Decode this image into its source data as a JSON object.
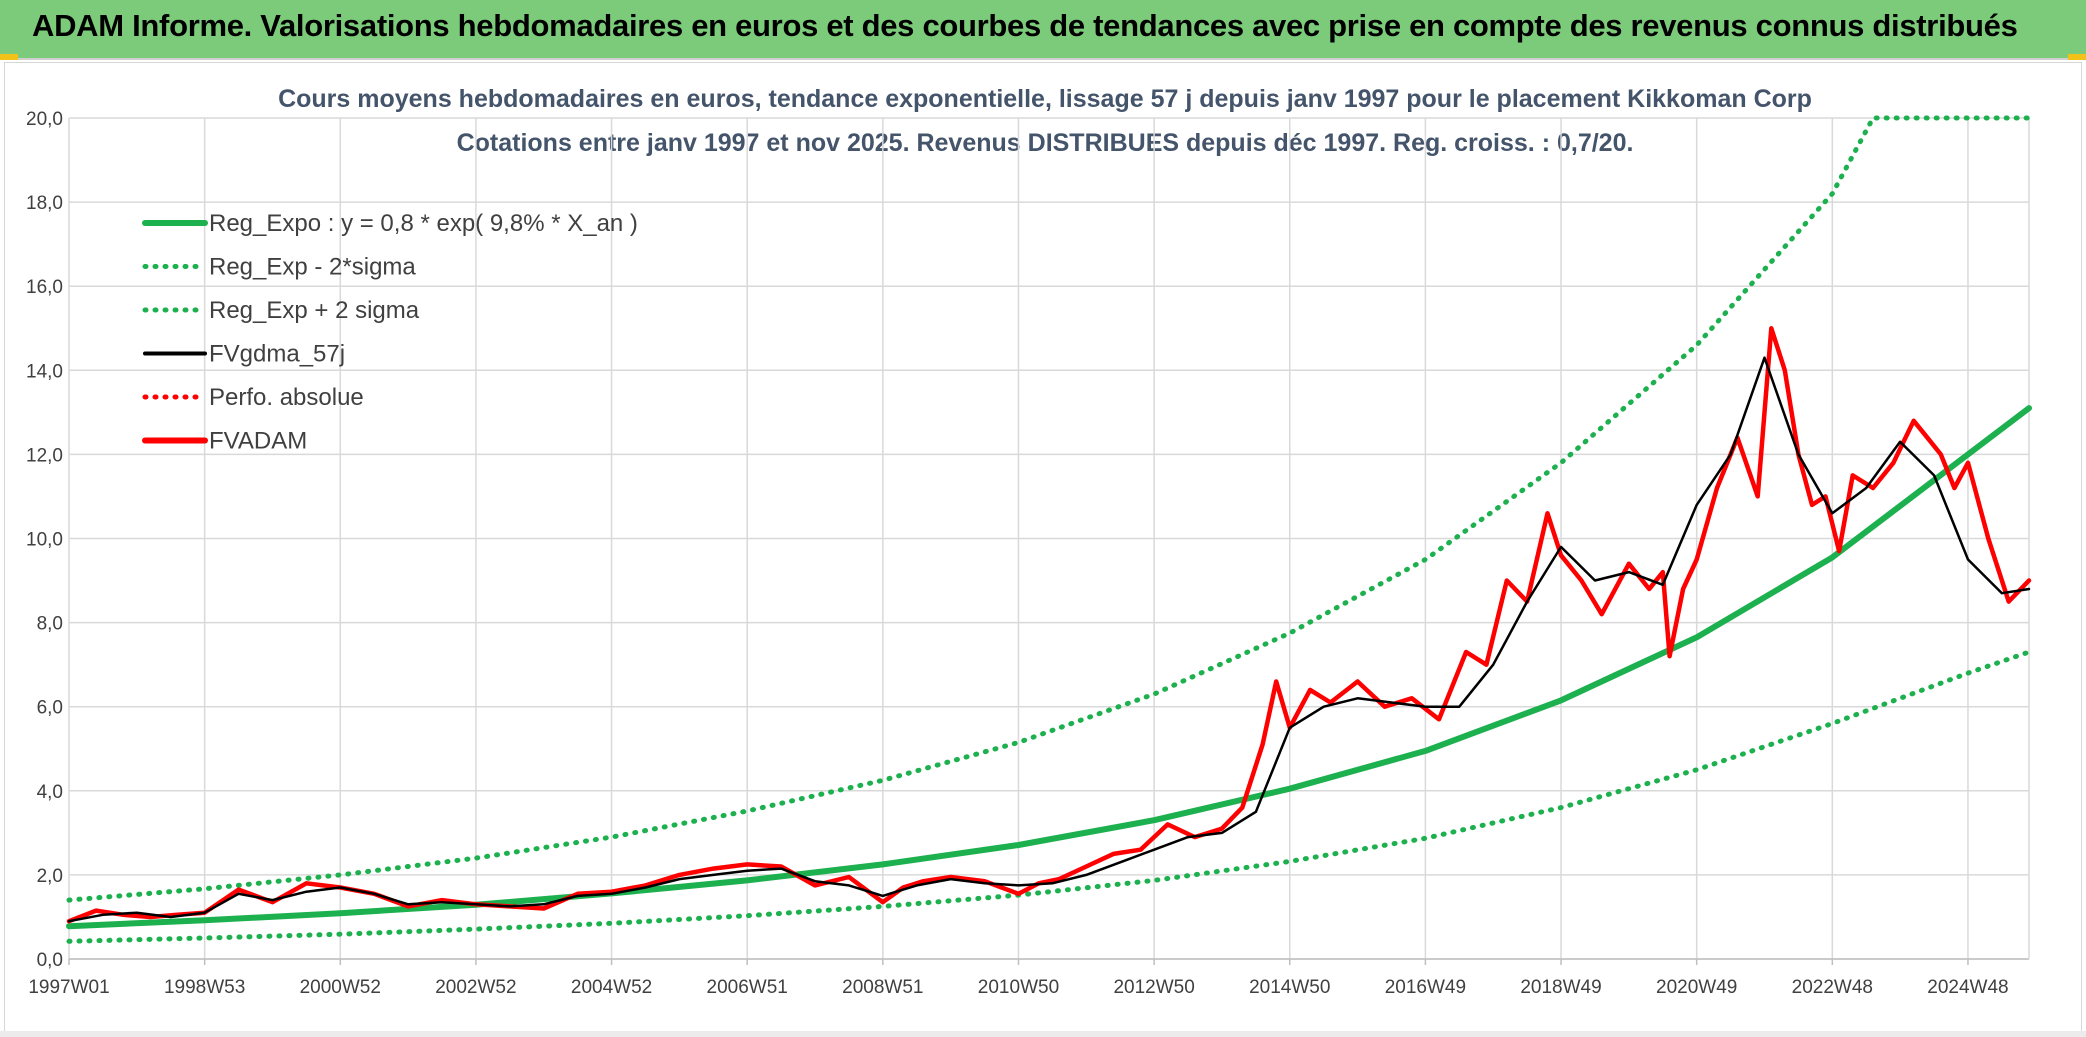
{
  "header": {
    "title": "ADAM Informe. Valorisations hebdomadaires en euros et des courbes de tendances avec prise en compte des revenus connus distribués"
  },
  "colors": {
    "header_bg": "#7ccb7a",
    "reg_green": "#1db04f",
    "fv_red": "#ff0000",
    "gdma_black": "#000000",
    "grid": "#d9d9d9",
    "text": "#44546a"
  },
  "chart_data": {
    "type": "line",
    "title": "Cours moyens hebdomadaires en euros, tendance exponentielle, lissage 57 j depuis janv 1997 pour le placement Kikkoman Corp",
    "subtitle": "Cotations entre janv 1997 et nov 2025. Revenus DISTRIBUES depuis déc 1997. Reg. croiss. : 0,7/20.",
    "xlabel": "",
    "ylabel": "",
    "ylim": [
      0,
      20
    ],
    "xlim": [
      1997.0,
      2025.9
    ],
    "y_ticks": [
      "0,0",
      "2,0",
      "4,0",
      "6,0",
      "8,0",
      "10,0",
      "12,0",
      "14,0",
      "16,0",
      "18,0",
      "20,0"
    ],
    "x_ticks": [
      {
        "x": 1997.0,
        "label": "1997W01"
      },
      {
        "x": 1999.0,
        "label": "1998W53"
      },
      {
        "x": 2001.0,
        "label": "2000W52"
      },
      {
        "x": 2003.0,
        "label": "2002W52"
      },
      {
        "x": 2005.0,
        "label": "2004W52"
      },
      {
        "x": 2007.0,
        "label": "2006W51"
      },
      {
        "x": 2009.0,
        "label": "2008W51"
      },
      {
        "x": 2011.0,
        "label": "2010W50"
      },
      {
        "x": 2013.0,
        "label": "2012W50"
      },
      {
        "x": 2015.0,
        "label": "2014W50"
      },
      {
        "x": 2017.0,
        "label": "2016W49"
      },
      {
        "x": 2019.0,
        "label": "2018W49"
      },
      {
        "x": 2021.0,
        "label": "2020W49"
      },
      {
        "x": 2023.0,
        "label": "2022W48"
      },
      {
        "x": 2025.0,
        "label": "2024W48"
      }
    ],
    "grid": true,
    "legend_position": "top-left",
    "legend": [
      {
        "label": "Reg_Expo : y = 0,8 * exp( 9,8% *  X_an )",
        "color": "#1db04f",
        "style": "solid-thick"
      },
      {
        "label": "Reg_Exp - 2*sigma",
        "color": "#1db04f",
        "style": "dotted"
      },
      {
        "label": "Reg_Exp + 2 sigma",
        "color": "#1db04f",
        "style": "dotted"
      },
      {
        "label": "FVgdma_57j",
        "color": "#000000",
        "style": "solid-thin"
      },
      {
        "label": "Perfo. absolue",
        "color": "#ff0000",
        "style": "dotted"
      },
      {
        "label": "FVADAM",
        "color": "#ff0000",
        "style": "solid-thick"
      }
    ],
    "series": [
      {
        "name": "Reg_Expo",
        "x": [
          1997,
          1999,
          2001,
          2003,
          2005,
          2007,
          2009,
          2011,
          2013,
          2015,
          2017,
          2019,
          2021,
          2023,
          2025,
          2025.9
        ],
        "values": [
          0.78,
          0.92,
          1.09,
          1.29,
          1.56,
          1.87,
          2.25,
          2.71,
          3.3,
          4.05,
          4.95,
          6.15,
          7.65,
          9.55,
          12.0,
          13.1
        ]
      },
      {
        "name": "Reg_Exp - 2*sigma",
        "x": [
          1997,
          1999,
          2001,
          2003,
          2005,
          2007,
          2009,
          2011,
          2013,
          2015,
          2017,
          2019,
          2021,
          2023,
          2025,
          2025.9
        ],
        "values": [
          0.42,
          0.5,
          0.59,
          0.71,
          0.85,
          1.03,
          1.25,
          1.52,
          1.87,
          2.32,
          2.87,
          3.6,
          4.5,
          5.6,
          6.8,
          7.3
        ]
      },
      {
        "name": "Reg_Exp + 2 sigma",
        "x": [
          1997,
          1999,
          2001,
          2003,
          2005,
          2007,
          2009,
          2011,
          2013,
          2015,
          2017,
          2019,
          2021,
          2023,
          2023.6,
          2025.9
        ],
        "values": [
          1.4,
          1.67,
          2.0,
          2.4,
          2.9,
          3.52,
          4.25,
          5.15,
          6.3,
          7.75,
          9.5,
          11.8,
          14.6,
          18.2,
          20.0,
          20.0
        ]
      },
      {
        "name": "FVgdma_57j",
        "x": [
          1997.0,
          1997.5,
          1998.0,
          1998.5,
          1999.0,
          1999.5,
          2000.0,
          2000.5,
          2001.0,
          2001.5,
          2002.0,
          2002.5,
          2003.0,
          2003.5,
          2004.0,
          2004.5,
          2005.0,
          2005.5,
          2006.0,
          2006.5,
          2007.0,
          2007.5,
          2008.0,
          2008.5,
          2009.0,
          2009.5,
          2010.0,
          2010.5,
          2011.0,
          2011.5,
          2012.0,
          2012.5,
          2013.0,
          2013.5,
          2014.0,
          2014.5,
          2015.0,
          2015.5,
          2016.0,
          2016.5,
          2017.0,
          2017.5,
          2018.0,
          2018.5,
          2019.0,
          2019.5,
          2020.0,
          2020.5,
          2021.0,
          2021.5,
          2022.0,
          2022.5,
          2023.0,
          2023.5,
          2024.0,
          2024.5,
          2025.0,
          2025.5,
          2025.9
        ],
        "values": [
          0.9,
          1.05,
          1.1,
          1.0,
          1.1,
          1.55,
          1.4,
          1.6,
          1.7,
          1.55,
          1.3,
          1.35,
          1.3,
          1.25,
          1.3,
          1.5,
          1.55,
          1.7,
          1.9,
          2.0,
          2.1,
          2.15,
          1.85,
          1.75,
          1.5,
          1.75,
          1.9,
          1.8,
          1.75,
          1.8,
          2.0,
          2.3,
          2.6,
          2.9,
          3.0,
          3.5,
          5.5,
          6.0,
          6.2,
          6.1,
          6.0,
          6.0,
          7.0,
          8.5,
          9.8,
          9.0,
          9.2,
          8.9,
          10.8,
          12.0,
          14.3,
          12.0,
          10.6,
          11.2,
          12.3,
          11.5,
          9.5,
          8.7,
          8.8
        ]
      },
      {
        "name": "FVADAM",
        "x": [
          1997.0,
          1997.4,
          1997.8,
          1998.2,
          1998.6,
          1999.0,
          1999.5,
          2000.0,
          2000.5,
          2001.0,
          2001.5,
          2002.0,
          2002.5,
          2003.0,
          2003.5,
          2004.0,
          2004.5,
          2005.0,
          2005.5,
          2006.0,
          2006.5,
          2007.0,
          2007.5,
          2008.0,
          2008.5,
          2009.0,
          2009.3,
          2009.6,
          2010.0,
          2010.5,
          2011.0,
          2011.3,
          2011.6,
          2012.0,
          2012.4,
          2012.8,
          2013.2,
          2013.6,
          2014.0,
          2014.3,
          2014.6,
          2014.8,
          2015.0,
          2015.3,
          2015.6,
          2016.0,
          2016.4,
          2016.8,
          2017.2,
          2017.6,
          2017.9,
          2018.2,
          2018.5,
          2018.8,
          2019.0,
          2019.3,
          2019.6,
          2020.0,
          2020.3,
          2020.5,
          2020.6,
          2020.8,
          2021.0,
          2021.3,
          2021.6,
          2021.9,
          2022.1,
          2022.3,
          2022.5,
          2022.7,
          2022.9,
          2023.1,
          2023.3,
          2023.6,
          2023.9,
          2024.2,
          2024.4,
          2024.6,
          2024.8,
          2025.0,
          2025.3,
          2025.6,
          2025.9
        ],
        "values": [
          0.9,
          1.15,
          1.05,
          1.0,
          1.05,
          1.1,
          1.65,
          1.35,
          1.8,
          1.7,
          1.55,
          1.25,
          1.4,
          1.3,
          1.25,
          1.2,
          1.55,
          1.6,
          1.75,
          2.0,
          2.15,
          2.25,
          2.2,
          1.75,
          1.95,
          1.35,
          1.7,
          1.85,
          1.95,
          1.85,
          1.55,
          1.8,
          1.9,
          2.2,
          2.5,
          2.6,
          3.2,
          2.9,
          3.1,
          3.6,
          5.1,
          6.6,
          5.5,
          6.4,
          6.1,
          6.6,
          6.0,
          6.2,
          5.7,
          7.3,
          7.0,
          9.0,
          8.5,
          10.6,
          9.6,
          9.0,
          8.2,
          9.4,
          8.8,
          9.2,
          7.2,
          8.8,
          9.5,
          11.2,
          12.4,
          11.0,
          15.0,
          14.0,
          12.0,
          10.8,
          11.0,
          9.7,
          11.5,
          11.2,
          11.8,
          12.8,
          12.4,
          12.0,
          11.2,
          11.8,
          10.0,
          8.5,
          9.0
        ]
      }
    ]
  }
}
